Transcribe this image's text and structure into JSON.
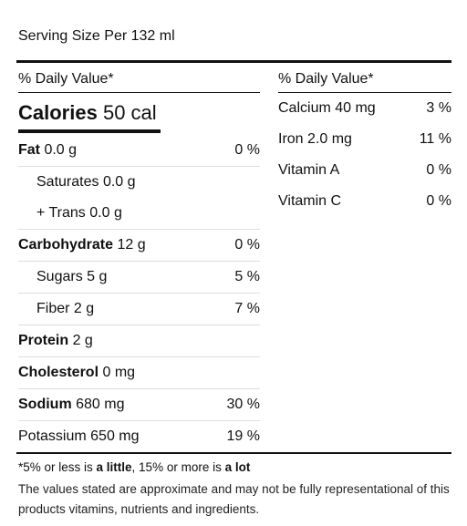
{
  "serving": "Serving Size Per 132 ml",
  "daily_value_header": "% Daily Value*",
  "calories": {
    "label": "Calories",
    "value": "50 cal"
  },
  "nutrients": [
    {
      "label": "Fat",
      "amount": "0.0 g",
      "percent": "0 %"
    },
    {
      "label": "Saturates",
      "amount": "0.0 g",
      "percent": ""
    },
    {
      "label": "+ Trans",
      "amount": "0.0 g",
      "percent": ""
    },
    {
      "label": "Carbohydrate",
      "amount": "12 g",
      "percent": "0 %"
    },
    {
      "label": "Sugars",
      "amount": "5 g",
      "percent": "5 %"
    },
    {
      "label": "Fiber",
      "amount": "2 g",
      "percent": "7 %"
    },
    {
      "label": "Protein",
      "amount": "2 g",
      "percent": ""
    },
    {
      "label": "Cholesterol",
      "amount": "0 mg",
      "percent": ""
    },
    {
      "label": "Sodium",
      "amount": "680 mg",
      "percent": "30 %"
    },
    {
      "label": "Potassium",
      "amount": "650 mg",
      "percent": "19 %"
    }
  ],
  "minerals": [
    {
      "label": "Calcium 40 mg",
      "percent": "3 %"
    },
    {
      "label": "Iron 2.0 mg",
      "percent": "11 %"
    },
    {
      "label": "Vitamin A",
      "percent": "0 %"
    },
    {
      "label": "Vitamin C",
      "percent": "0 %"
    }
  ],
  "footnote": {
    "pre": "*5% or less is ",
    "little": "a little",
    "mid": ", 15% or more is ",
    "lot": "a lot"
  },
  "disclaimer": "The values stated are approximate and may not be fully representational of this products vitamins, nutrients and ingredients."
}
